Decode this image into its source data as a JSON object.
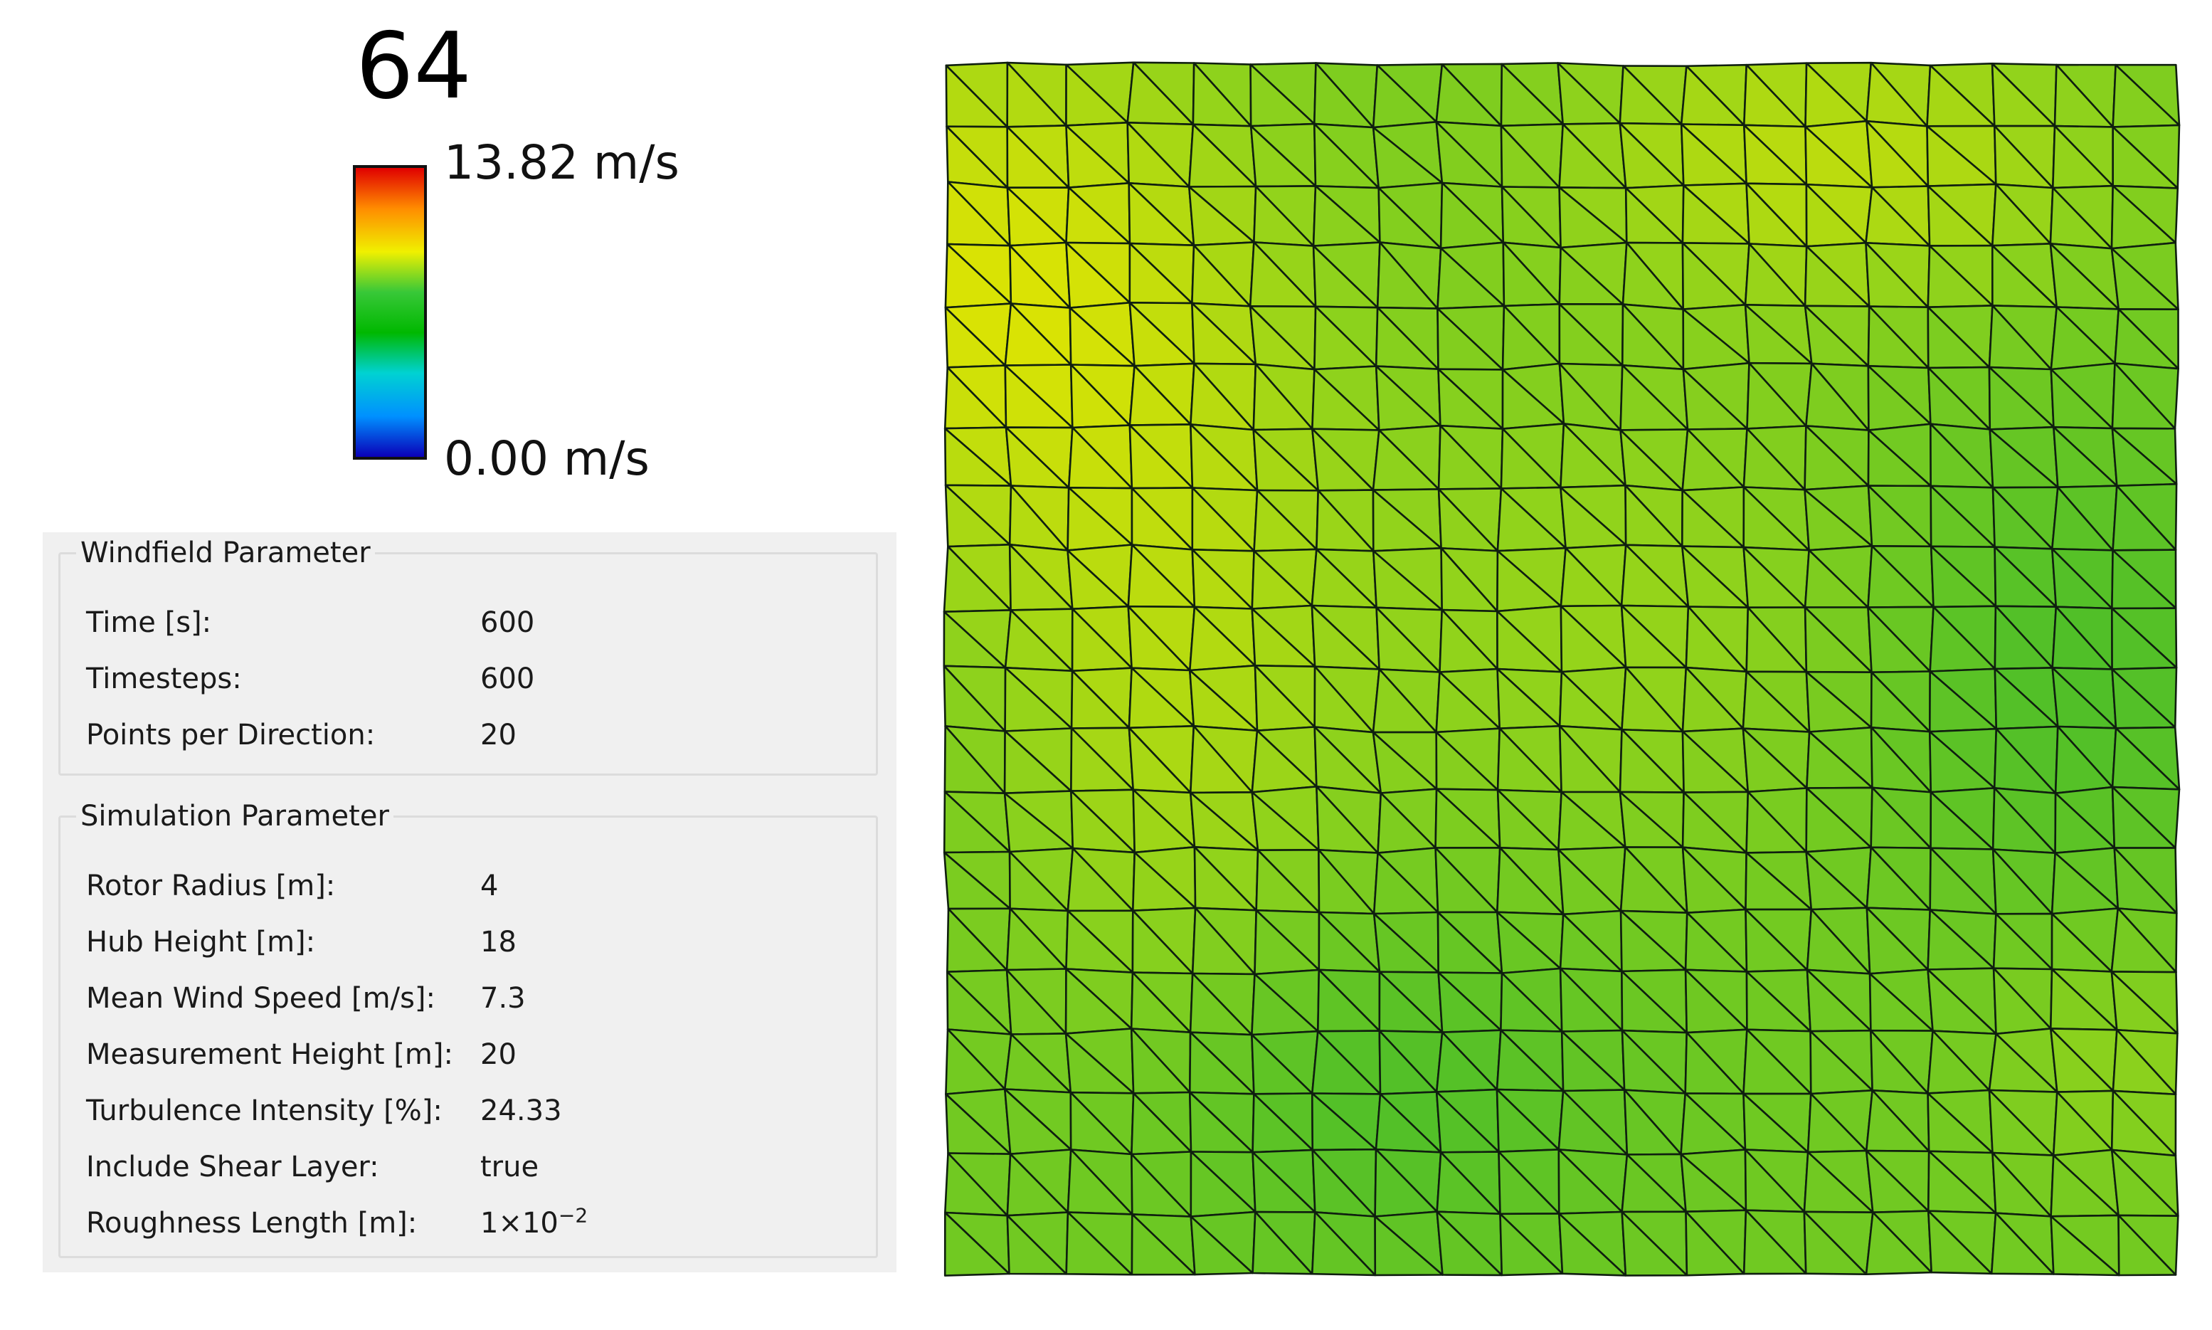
{
  "timestep_label": "64",
  "legend": {
    "max_label": "13.82 m/s",
    "min_label": "0.00 m/s",
    "colors": [
      "#0a00b8",
      "#0090ff",
      "#00d2d2",
      "#00b800",
      "#38c838",
      "#f0f000",
      "#ff8c00",
      "#e00000"
    ]
  },
  "windfield_parameter": {
    "title": "Windfield Parameter",
    "rows": [
      {
        "label": "Time [s]:",
        "value": "600"
      },
      {
        "label": "Timesteps:",
        "value": "600"
      },
      {
        "label": "Points per Direction:",
        "value": "20"
      }
    ]
  },
  "simulation_parameter": {
    "title": "Simulation Parameter",
    "rows": [
      {
        "label": "Rotor Radius [m]:",
        "value": "4"
      },
      {
        "label": "Hub Height [m]:",
        "value": "18"
      },
      {
        "label": "Mean Wind Speed [m/s]:",
        "value": "7.3"
      },
      {
        "label": "Measurement Height [m]:",
        "value": "20"
      },
      {
        "label": "Turbulence Intensity [%]:",
        "value": "24.33"
      },
      {
        "label": "Include Shear Layer:",
        "value": "true"
      },
      {
        "label": "Roughness Length [m]:",
        "value": "1×10",
        "exponent": "−2"
      }
    ]
  },
  "windfield_mesh": {
    "points_per_direction": 20,
    "colors": {
      "low": "#2fb52f",
      "mid": "#8ed21c",
      "high": "#e7e600",
      "lines": "#0f1f0f"
    }
  }
}
